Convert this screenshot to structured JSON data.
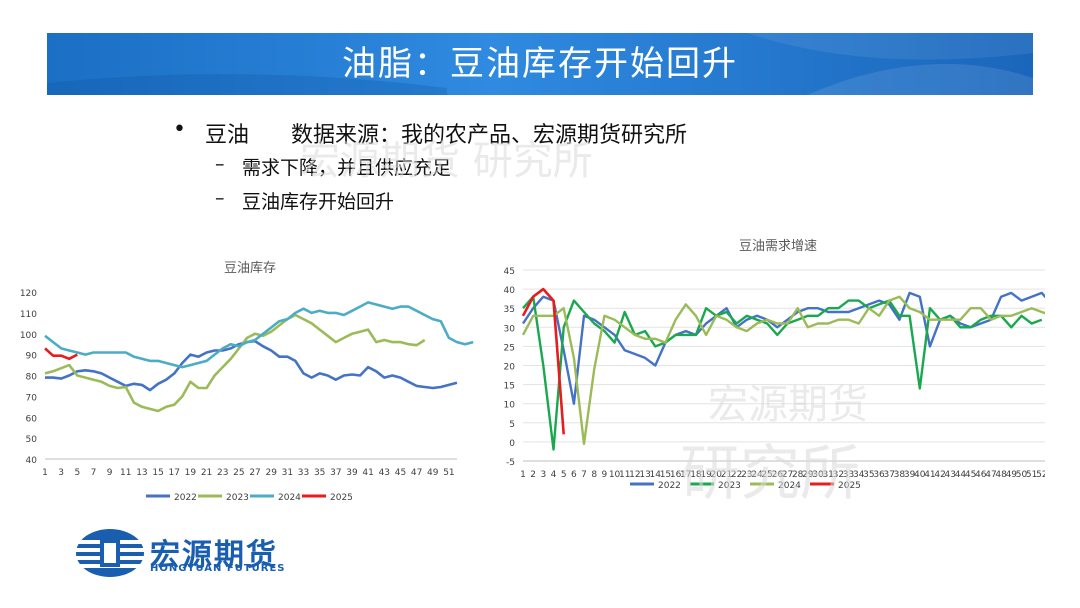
{
  "header": {
    "title": "油脂：豆油库存开始回升"
  },
  "bullets": {
    "marker": "•",
    "main": "豆油      数据来源：我的农产品、宏源期货研究所",
    "dash": "–",
    "sub1": "需求下降，并且供应充足",
    "sub2": "豆油库存开始回升"
  },
  "watermark": {
    "a": "宏源期货 研究所",
    "b": "宏源期货",
    "c": "研究所"
  },
  "logo": {
    "cn": "宏源期货",
    "en": "HONGYUAN FUTURES"
  },
  "colors": {
    "banner": "#1b6fc4",
    "s2022": "#4472c4",
    "s2023": "#9bbb59",
    "s2024": "#4bacc6",
    "s2025": "#e81c1c",
    "s2023b": "#1aa84f"
  },
  "chart_data": [
    {
      "type": "line",
      "title": "豆油库存",
      "ylim": [
        40,
        120
      ],
      "yticks": [
        40,
        50,
        60,
        70,
        80,
        90,
        100,
        110,
        120
      ],
      "x_labels": [
        "1",
        "3",
        "5",
        "7",
        "9",
        "11",
        "13",
        "15",
        "17",
        "19",
        "21",
        "23",
        "25",
        "27",
        "29",
        "31",
        "33",
        "35",
        "37",
        "39",
        "41",
        "43",
        "45",
        "47",
        "49",
        "51"
      ],
      "series": [
        {
          "name": "2022",
          "values": [
            79,
            79,
            78.5,
            80,
            82,
            82.5,
            82,
            81,
            79,
            77,
            75,
            76,
            75.5,
            73,
            76,
            78,
            81,
            86,
            90,
            89,
            91,
            92,
            92,
            93,
            95,
            96,
            96.5,
            94,
            92,
            89,
            89,
            87,
            81,
            79,
            81,
            80,
            78,
            80,
            80.5,
            80,
            84,
            82,
            79,
            80,
            79,
            77,
            75,
            74.5,
            74,
            74.5,
            75.5,
            76.5
          ]
        },
        {
          "name": "2023",
          "values": [
            81,
            82,
            83.5,
            85,
            80,
            79,
            78,
            77,
            75,
            74,
            74.5,
            67,
            65,
            64,
            63,
            65,
            66,
            70,
            77,
            74,
            74,
            80,
            84,
            88,
            93,
            98,
            100,
            99,
            101,
            104,
            107,
            109,
            107,
            105,
            102,
            99,
            96,
            98,
            100,
            101,
            102,
            96,
            97,
            96,
            96,
            95,
            94.5,
            97
          ]
        },
        {
          "name": "2024",
          "values": [
            99,
            96,
            93,
            92,
            91,
            90,
            91,
            91,
            91,
            91,
            91,
            89,
            88,
            87,
            87,
            86,
            85,
            84,
            85,
            86,
            87,
            90,
            93,
            95,
            94,
            96,
            97,
            100,
            103,
            106,
            107,
            110,
            112,
            110,
            111,
            110,
            110,
            109,
            111,
            113,
            115,
            114,
            113,
            112,
            113,
            113,
            111,
            109,
            107,
            106,
            98,
            96,
            95,
            96
          ]
        },
        {
          "name": "2025",
          "values": [
            93,
            89.5,
            89.5,
            88,
            90
          ]
        }
      ]
    },
    {
      "type": "line",
      "title": "豆油需求增速",
      "ylim": [
        -5,
        45
      ],
      "yticks": [
        -5,
        0,
        5,
        10,
        15,
        20,
        25,
        30,
        35,
        40,
        45
      ],
      "x_labels": [
        "1",
        "2",
        "3",
        "4",
        "5",
        "6",
        "7",
        "8",
        "9",
        "10",
        "11",
        "12",
        "13",
        "14",
        "15",
        "16",
        "17",
        "18",
        "19",
        "20",
        "21",
        "22",
        "23",
        "24",
        "25",
        "26",
        "27",
        "28",
        "29",
        "30",
        "31",
        "32",
        "33",
        "34",
        "35",
        "36",
        "37",
        "38",
        "39",
        "40",
        "41",
        "42",
        "43",
        "44",
        "45",
        "46",
        "47",
        "48",
        "49",
        "50",
        "51",
        "52",
        "53"
      ],
      "series": [
        {
          "name": "2022",
          "values": [
            31,
            35,
            38,
            37,
            24,
            10,
            33,
            32,
            30,
            28,
            24,
            23,
            22,
            20,
            26,
            28,
            29,
            28,
            31,
            33,
            35,
            30,
            32,
            33,
            32,
            30,
            32,
            34,
            35,
            35,
            34,
            34,
            34,
            35,
            36,
            37,
            36,
            32,
            39,
            38,
            25,
            32,
            33,
            31,
            30,
            31,
            32,
            38,
            39,
            37,
            38,
            39,
            36,
            35
          ]
        },
        {
          "name": "2023",
          "values": [
            35,
            38,
            20,
            -2,
            30,
            37,
            34,
            31,
            29,
            26,
            34,
            28,
            29,
            25,
            26,
            28,
            28,
            28,
            35,
            33,
            34,
            31,
            33,
            32,
            31,
            28,
            31,
            32,
            33,
            33,
            35,
            35,
            37,
            37,
            35,
            36,
            37,
            33,
            33,
            14,
            35,
            32,
            33,
            30,
            30,
            32,
            33,
            33,
            30,
            33,
            31,
            32
          ]
        },
        {
          "name": "2024",
          "values": [
            28,
            33,
            33,
            33,
            35,
            22,
            -0.5,
            19,
            33,
            32,
            30,
            28,
            27,
            27,
            26,
            32,
            36,
            33,
            28,
            33,
            32,
            30,
            29,
            31,
            32,
            31,
            31,
            35,
            30,
            31,
            31,
            32,
            32,
            31,
            35,
            33,
            37,
            38,
            35,
            34,
            32,
            32,
            32,
            32,
            35,
            35,
            32,
            33,
            33,
            34,
            35,
            34,
            33,
            35
          ]
        },
        {
          "name": "2025",
          "values": [
            33,
            38,
            40,
            37,
            2
          ]
        }
      ]
    }
  ]
}
